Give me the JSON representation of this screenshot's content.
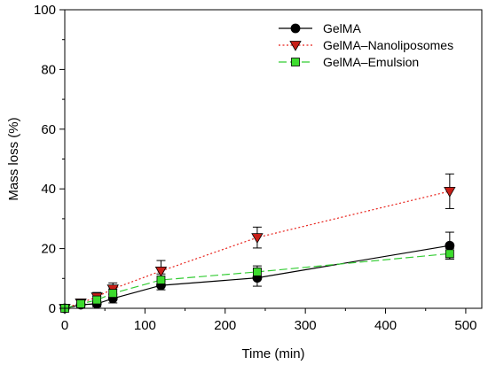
{
  "chart_data": {
    "type": "line",
    "xlabel": "Time (min)",
    "ylabel": "Mass loss (%)",
    "xlim": [
      0,
      520
    ],
    "ylim": [
      0,
      100
    ],
    "xticks": [
      "0",
      "100",
      "200",
      "300",
      "400",
      "500"
    ],
    "yticks": [
      "0",
      "20",
      "40",
      "60",
      "80",
      "100"
    ],
    "xtick_values": [
      0,
      100,
      200,
      300,
      400,
      500
    ],
    "ytick_values": [
      0,
      20,
      40,
      60,
      80,
      100
    ],
    "grid": false,
    "legend_position": "top-right",
    "series": [
      {
        "name": "GelMA",
        "color": "#000000",
        "line_style": "solid",
        "marker": "circle",
        "marker_color": "#000000",
        "points": [
          {
            "x": 0,
            "y": 0,
            "err": 0
          },
          {
            "x": 20,
            "y": 1.2,
            "err": 0.8
          },
          {
            "x": 40,
            "y": 1.5,
            "err": 1.0
          },
          {
            "x": 60,
            "y": 3.3,
            "err": 1.5
          },
          {
            "x": 120,
            "y": 7.7,
            "err": 1.5
          },
          {
            "x": 240,
            "y": 10.2,
            "err": 2.8
          },
          {
            "x": 480,
            "y": 21.0,
            "err": 4.5
          }
        ]
      },
      {
        "name": "GelMA–Nanoliposomes",
        "color": "#e8231c",
        "line_style": "dotted",
        "marker": "triangle-down",
        "marker_color": "#c81e17",
        "points": [
          {
            "x": 0,
            "y": 0,
            "err": 0
          },
          {
            "x": 20,
            "y": 1.8,
            "err": 1.2
          },
          {
            "x": 40,
            "y": 3.8,
            "err": 1.5
          },
          {
            "x": 60,
            "y": 6.5,
            "err": 2.0
          },
          {
            "x": 120,
            "y": 12.5,
            "err": 3.5
          },
          {
            "x": 240,
            "y": 23.7,
            "err": 3.5
          },
          {
            "x": 480,
            "y": 39.2,
            "err": 5.8
          }
        ]
      },
      {
        "name": "GelMA–Emulsion",
        "color": "#33cc33",
        "line_style": "dashed",
        "marker": "square",
        "marker_color": "#3ddc2e",
        "points": [
          {
            "x": 0,
            "y": 0,
            "err": 0
          },
          {
            "x": 20,
            "y": 1.5,
            "err": 1.0
          },
          {
            "x": 40,
            "y": 2.8,
            "err": 1.2
          },
          {
            "x": 60,
            "y": 5.0,
            "err": 1.5
          },
          {
            "x": 120,
            "y": 9.5,
            "err": 2.0
          },
          {
            "x": 240,
            "y": 12.2,
            "err": 2.0
          },
          {
            "x": 480,
            "y": 18.3,
            "err": 1.8
          }
        ]
      }
    ]
  }
}
